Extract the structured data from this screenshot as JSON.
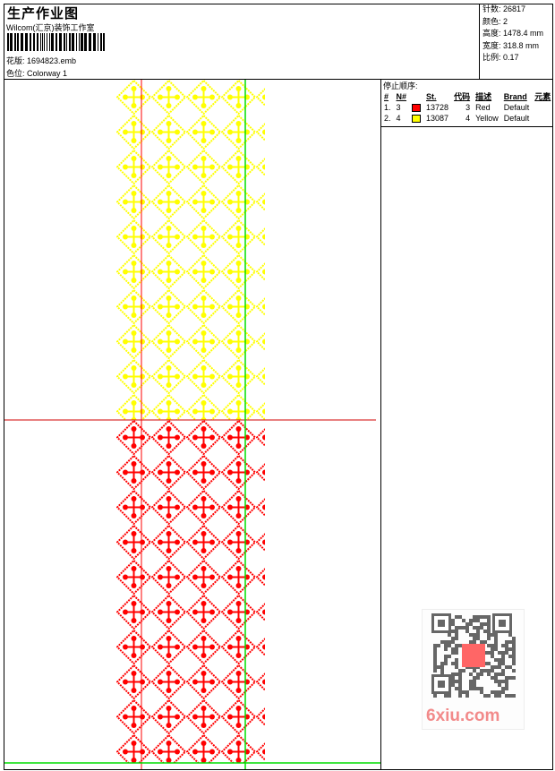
{
  "header": {
    "title": "生产作业图",
    "subtitle": "Wilcom(汇京)装饰工作室",
    "design_label": "花版: 1694823.emb",
    "colorway_label": "色位: Colorway 1"
  },
  "stats": {
    "stitches": "针数: 26817",
    "colors": "颜色: 2",
    "height": "高度: 1478.4 mm",
    "width": "宽度: 318.8 mm",
    "scale": "比例: 0.17"
  },
  "stop_sequence": {
    "title": "停止顺序:",
    "columns": [
      "#",
      "N#",
      "St.",
      "代码",
      "描述",
      "Brand",
      "元素"
    ],
    "rows": [
      {
        "idx": "1.",
        "n": "3",
        "color": "#ff0000",
        "st": "13728",
        "code": "3",
        "desc": "Red",
        "brand": "Default"
      },
      {
        "idx": "2.",
        "n": "4",
        "color": "#ffff00",
        "st": "13087",
        "code": "4",
        "desc": "Yellow",
        "brand": "Default"
      }
    ]
  },
  "design_colors": {
    "top": "#ffff00",
    "bottom": "#ff0000",
    "guide_left": "#ff0000",
    "guide_right": "#00dd00"
  },
  "watermark": "6xiu.com"
}
